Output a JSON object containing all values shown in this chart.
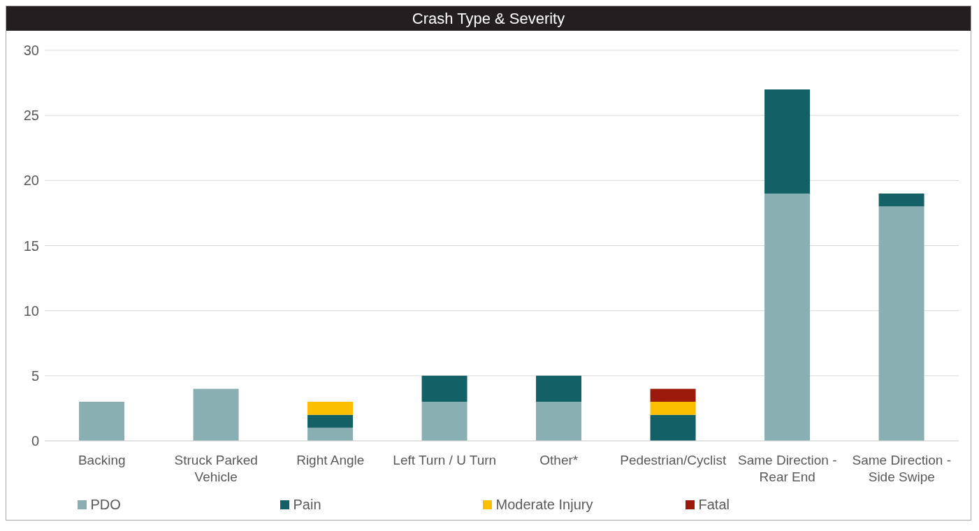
{
  "chart_data": {
    "type": "bar",
    "title": "Crash Type & Severity",
    "stacked": true,
    "categories": [
      "Backing",
      "Struck Parked Vehicle",
      "Right Angle",
      "Left Turn / U Turn",
      "Other*",
      "Pedestrian/Cyclist",
      "Same Direction - Rear End",
      "Same Direction - Side Swipe"
    ],
    "series": [
      {
        "name": "PDO",
        "color": "#8aafb3",
        "values": [
          3,
          4,
          1,
          3,
          3,
          0,
          19,
          18
        ]
      },
      {
        "name": "Pain",
        "color": "#136066",
        "values": [
          0,
          0,
          1,
          2,
          2,
          2,
          8,
          1
        ]
      },
      {
        "name": "Moderate Injury",
        "color": "#fbbf00",
        "values": [
          0,
          0,
          1,
          0,
          0,
          1,
          0,
          0
        ]
      },
      {
        "name": "Fatal",
        "color": "#9b1a0c",
        "values": [
          0,
          0,
          0,
          0,
          0,
          1,
          0,
          0
        ]
      }
    ],
    "ylim": [
      0,
      30
    ],
    "yticks": [
      0,
      5,
      10,
      15,
      20,
      25,
      30
    ],
    "grid": "y",
    "legend": "bottom"
  }
}
